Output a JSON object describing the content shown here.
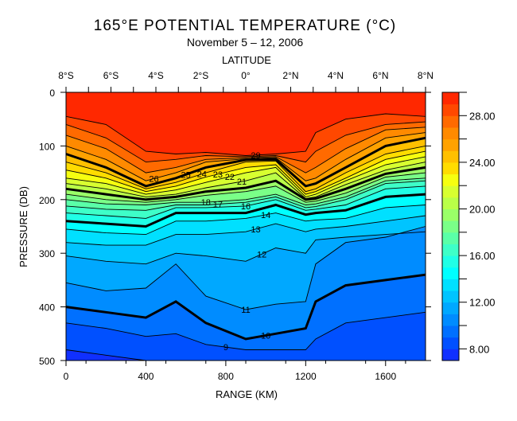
{
  "chart_data": {
    "type": "heatmap",
    "subtype": "filled-contour",
    "title": "165°E POTENTIAL TEMPERATURE (°C)",
    "subtitle": "November 5 – 12, 2006",
    "top_axis_label": "LATITUDE",
    "top_ticks": [
      "8°S",
      "6°S",
      "4°S",
      "2°S",
      "0°",
      "2°N",
      "4°N",
      "6°N",
      "8°N"
    ],
    "xlabel": "RANGE (KM)",
    "ylabel": "PRESSURE (DB)",
    "xlim": [
      0,
      1800
    ],
    "ylim": [
      0,
      500
    ],
    "x_ticks": [
      0,
      400,
      800,
      1200,
      1600
    ],
    "y_ticks": [
      0,
      100,
      200,
      300,
      400,
      500
    ],
    "colorbar": {
      "range": [
        7,
        30
      ],
      "tick_labels": [
        "28.00",
        "24.00",
        "20.00",
        "16.00",
        "12.00",
        "8.00"
      ],
      "tick_values": [
        28,
        24,
        20,
        16,
        12,
        8
      ],
      "band_colors": [
        "#1030ff",
        "#0050ff",
        "#0070ff",
        "#008cff",
        "#00a8ff",
        "#00c4ff",
        "#00e0ff",
        "#00ffff",
        "#20ffe6",
        "#3effc8",
        "#5affa8",
        "#7aff88",
        "#9aff68",
        "#baff48",
        "#d8ff30",
        "#f6ff10",
        "#ffdc00",
        "#ffc000",
        "#ffa200",
        "#ff8a00",
        "#ff6a00",
        "#ff4800",
        "#ff2800"
      ]
    },
    "range_km": [
      0,
      200,
      400,
      550,
      700,
      900,
      1050,
      1200,
      1250,
      1400,
      1600,
      1800
    ],
    "isotherm_depths_db": {
      "29": [
        45,
        60,
        110,
        115,
        112,
        118,
        115,
        110,
        75,
        50,
        40,
        45
      ],
      "28": [
        60,
        85,
        130,
        125,
        118,
        120,
        118,
        130,
        110,
        80,
        60,
        55
      ],
      "27": [
        80,
        105,
        150,
        140,
        125,
        122,
        120,
        150,
        140,
        105,
        70,
        65
      ],
      "26": [
        100,
        125,
        165,
        150,
        130,
        124,
        122,
        165,
        160,
        125,
        85,
        75
      ],
      "25": [
        115,
        140,
        175,
        160,
        140,
        126,
        125,
        175,
        170,
        140,
        100,
        85
      ],
      "24": [
        130,
        150,
        180,
        168,
        150,
        130,
        128,
        185,
        180,
        150,
        115,
        100
      ],
      "23": [
        145,
        160,
        185,
        175,
        158,
        140,
        135,
        190,
        185,
        160,
        125,
        110
      ],
      "22": [
        160,
        170,
        190,
        182,
        168,
        150,
        140,
        195,
        190,
        165,
        135,
        120
      ],
      "21": [
        170,
        180,
        195,
        190,
        178,
        165,
        150,
        198,
        195,
        172,
        145,
        130
      ],
      "20": [
        180,
        190,
        200,
        195,
        185,
        178,
        165,
        200,
        198,
        180,
        152,
        140
      ],
      "19": [
        190,
        200,
        205,
        200,
        192,
        185,
        175,
        205,
        203,
        188,
        158,
        150
      ],
      "18": [
        200,
        208,
        210,
        205,
        205,
        200,
        190,
        210,
        208,
        195,
        165,
        160
      ],
      "17": [
        212,
        218,
        220,
        210,
        210,
        205,
        195,
        215,
        213,
        200,
        170,
        165
      ],
      "16": [
        225,
        230,
        235,
        215,
        215,
        212,
        200,
        220,
        218,
        210,
        180,
        175
      ],
      "15": [
        240,
        245,
        250,
        225,
        225,
        225,
        210,
        228,
        225,
        220,
        195,
        190
      ],
      "14": [
        255,
        262,
        265,
        240,
        240,
        235,
        225,
        240,
        238,
        235,
        215,
        210
      ],
      "13": [
        280,
        285,
        285,
        265,
        265,
        260,
        245,
        260,
        255,
        250,
        240,
        230
      ],
      "12": [
        305,
        315,
        320,
        300,
        305,
        315,
        290,
        300,
        275,
        270,
        265,
        260
      ],
      "11": [
        355,
        370,
        365,
        320,
        380,
        405,
        395,
        390,
        320,
        280,
        270,
        250
      ],
      "10": [
        400,
        410,
        420,
        390,
        430,
        460,
        450,
        440,
        390,
        360,
        350,
        340
      ],
      "9": [
        430,
        440,
        455,
        450,
        470,
        480,
        480,
        480,
        460,
        430,
        420,
        410
      ],
      "8": [
        480,
        490,
        500,
        500,
        500,
        500,
        500,
        500,
        500,
        500,
        500,
        500
      ]
    },
    "contour_labels": [
      {
        "text": "26",
        "x_km": 440,
        "level": 26
      },
      {
        "text": "25",
        "x_km": 600,
        "level": 25
      },
      {
        "text": "24",
        "x_km": 620,
        "level": 24
      },
      {
        "text": "23",
        "x_km": 700,
        "level": 23
      },
      {
        "text": "22",
        "x_km": 760,
        "level": 22
      },
      {
        "text": "21",
        "x_km": 880,
        "level": 21
      },
      {
        "text": "29",
        "x_km": 950,
        "level": 29
      },
      {
        "text": "18",
        "x_km": 700,
        "level": 18
      },
      {
        "text": "17",
        "x_km": 760,
        "level": 17
      },
      {
        "text": "16",
        "x_km": 900,
        "level": 16
      },
      {
        "text": "14",
        "x_km": 1000,
        "level": 14
      },
      {
        "text": "13",
        "x_km": 950,
        "level": 13
      },
      {
        "text": "12",
        "x_km": 980,
        "level": 12
      },
      {
        "text": "11",
        "x_km": 900,
        "level": 11
      },
      {
        "text": "10",
        "x_km": 1000,
        "level": 10
      },
      {
        "text": "9",
        "x_km": 800,
        "level": 9
      }
    ],
    "thick_levels": [
      25,
      20,
      15,
      10
    ]
  }
}
